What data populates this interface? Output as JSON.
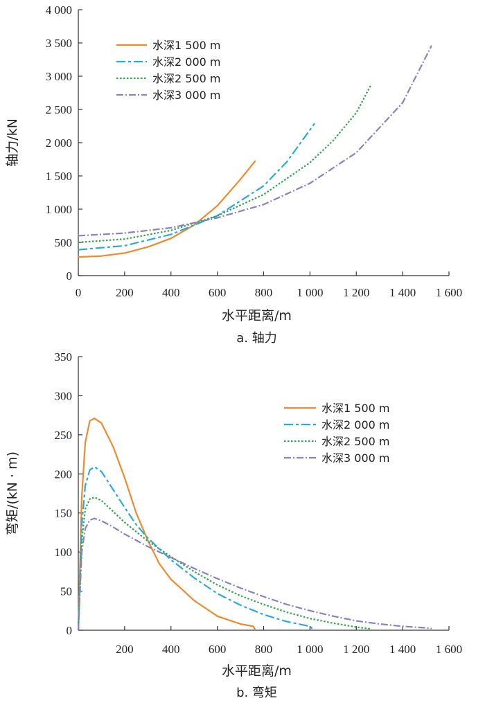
{
  "chart_data": [
    {
      "id": "a",
      "type": "line",
      "caption": "a. 轴力",
      "xlabel": "水平距离/m",
      "ylabel": "轴力/kN",
      "xlim": [
        0,
        1600
      ],
      "ylim": [
        0,
        4000
      ],
      "xticks": [
        0,
        200,
        400,
        600,
        800,
        1000,
        1200,
        1400,
        1600
      ],
      "xtick_labels": [
        "0",
        "200",
        "400",
        "600",
        "800",
        "1 000",
        "1 200",
        "1 400",
        "1 600"
      ],
      "yticks": [
        0,
        500,
        1000,
        1500,
        2000,
        2500,
        3000,
        3500,
        4000
      ],
      "ytick_labels": [
        "0",
        "500",
        "1 000",
        "1 500",
        "2 000",
        "2 500",
        "3 000",
        "3 500",
        "4 000"
      ],
      "legend_position": "top-left",
      "series": [
        {
          "name": "水深1 500 m",
          "color": "#f08a2c",
          "dash": "solid",
          "x": [
            0,
            100,
            200,
            300,
            400,
            500,
            600,
            700,
            765
          ],
          "y": [
            280,
            295,
            340,
            430,
            560,
            760,
            1050,
            1450,
            1730
          ]
        },
        {
          "name": "水深2 000 m",
          "color": "#29a9e1",
          "dash": "longdash",
          "x": [
            0,
            200,
            400,
            600,
            800,
            900,
            1020
          ],
          "y": [
            390,
            450,
            620,
            900,
            1350,
            1710,
            2290
          ]
        },
        {
          "name": "水深2 500 m",
          "color": "#2ea84a",
          "dash": "dotted",
          "x": [
            0,
            200,
            400,
            600,
            800,
            1000,
            1100,
            1200,
            1265
          ],
          "y": [
            500,
            550,
            680,
            900,
            1220,
            1700,
            2030,
            2450,
            2880
          ]
        },
        {
          "name": "水深3 000 m",
          "color": "#8a80c4",
          "dash": "dashdot",
          "x": [
            0,
            200,
            400,
            600,
            800,
            1000,
            1200,
            1400,
            1525
          ],
          "y": [
            600,
            640,
            720,
            870,
            1070,
            1390,
            1850,
            2600,
            3460
          ]
        }
      ]
    },
    {
      "id": "b",
      "type": "line",
      "caption": "b. 弯矩",
      "xlabel": "水平距离/m",
      "ylabel": "弯矩/(kN · m)",
      "xlim": [
        0,
        1600
      ],
      "ylim": [
        0,
        350
      ],
      "xticks": [
        200,
        400,
        600,
        800,
        1000,
        1200,
        1400,
        1600
      ],
      "xtick_labels": [
        "200",
        "400",
        "600",
        "800",
        "1 000",
        "1 200",
        "1 400",
        "1 600"
      ],
      "yticks": [
        0,
        50,
        100,
        150,
        200,
        250,
        300,
        350
      ],
      "ytick_labels": [
        "0",
        "50",
        "100",
        "150",
        "200",
        "250",
        "300",
        "350"
      ],
      "legend_position": "top-right",
      "series": [
        {
          "name": "水深1 500 m",
          "color": "#f08a2c",
          "dash": "solid",
          "x": [
            0,
            15,
            30,
            50,
            70,
            100,
            150,
            200,
            250,
            300,
            350,
            400,
            500,
            600,
            700,
            755,
            765
          ],
          "y": [
            0,
            170,
            240,
            268,
            271,
            265,
            235,
            195,
            150,
            115,
            85,
            65,
            38,
            18,
            8,
            5,
            0
          ]
        },
        {
          "name": "水深2 000 m",
          "color": "#29a9e1",
          "dash": "longdash",
          "x": [
            0,
            15,
            30,
            50,
            70,
            100,
            150,
            200,
            250,
            300,
            400,
            500,
            600,
            700,
            800,
            900,
            1000,
            1015
          ],
          "y": [
            0,
            135,
            185,
            205,
            209,
            203,
            180,
            157,
            135,
            118,
            90,
            67,
            47,
            32,
            20,
            11,
            5,
            0
          ]
        },
        {
          "name": "水深2 500 m",
          "color": "#2ea84a",
          "dash": "dotted",
          "x": [
            0,
            15,
            30,
            50,
            70,
            100,
            150,
            200,
            300,
            400,
            500,
            600,
            700,
            800,
            900,
            1000,
            1100,
            1200,
            1255,
            1265
          ],
          "y": [
            0,
            115,
            155,
            168,
            170,
            166,
            152,
            138,
            114,
            94,
            75,
            58,
            44,
            33,
            23,
            15,
            9,
            4,
            2,
            0
          ]
        },
        {
          "name": "水深3 000 m",
          "color": "#8a80c4",
          "dash": "dashdot",
          "x": [
            0,
            15,
            30,
            50,
            70,
            100,
            150,
            200,
            300,
            400,
            500,
            600,
            700,
            800,
            900,
            1000,
            1100,
            1200,
            1300,
            1400,
            1500,
            1525
          ],
          "y": [
            0,
            100,
            130,
            141,
            143,
            140,
            132,
            123,
            107,
            93,
            79,
            66,
            54,
            43,
            33,
            25,
            18,
            12,
            8,
            5,
            3,
            2
          ]
        }
      ]
    }
  ]
}
